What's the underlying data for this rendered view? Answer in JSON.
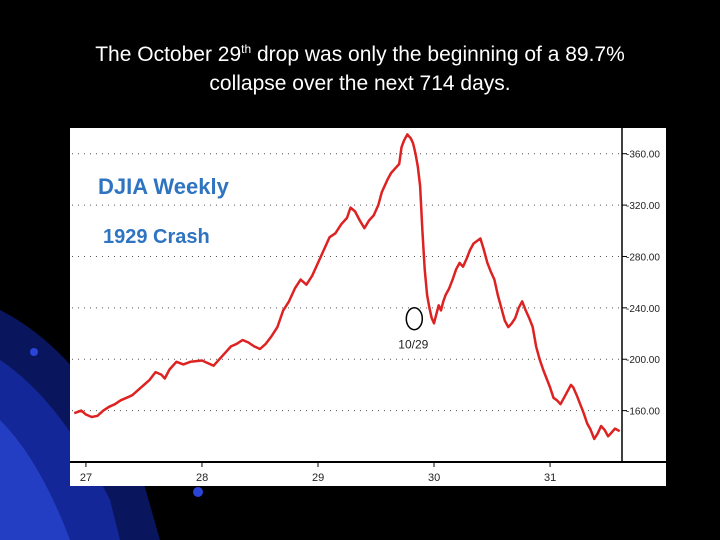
{
  "slide": {
    "title_part1": "The October 29",
    "title_sup": "th",
    "title_part2": " drop was only the beginning of a 89.7%",
    "title_line2": "collapse over the next 714 days."
  },
  "colors": {
    "background": "#000000",
    "plot_background": "#ffffff",
    "series_line": "#dd2222",
    "inset_title": "#2e74c0",
    "axis_panel": "#ffffff"
  },
  "chart_data": {
    "type": "line",
    "title": "DJIA Weekly",
    "subtitle": "1929 Crash",
    "ylim": [
      120,
      380
    ],
    "y_ticks": [
      360,
      320,
      280,
      240,
      200,
      160
    ],
    "y_tick_labels": [
      "360.00",
      "320.00",
      "280.00",
      "240.00",
      "200.00",
      "160.00"
    ],
    "x_ticks": [
      27,
      28,
      29,
      30,
      31
    ],
    "x_tick_labels": [
      "27",
      "28",
      "29",
      "30",
      "31"
    ],
    "xlim": [
      26.88,
      31.62
    ],
    "grid": "dotted-horizontal",
    "y_axis_position": "right",
    "annotation": {
      "label": "10/29",
      "x": 29.83,
      "y": 230
    },
    "series": [
      {
        "points": [
          [
            26.9,
            158
          ],
          [
            26.96,
            160
          ],
          [
            27.0,
            157
          ],
          [
            27.05,
            155
          ],
          [
            27.1,
            156
          ],
          [
            27.15,
            160
          ],
          [
            27.2,
            163
          ],
          [
            27.25,
            165
          ],
          [
            27.3,
            168
          ],
          [
            27.35,
            170
          ],
          [
            27.4,
            172
          ],
          [
            27.45,
            176
          ],
          [
            27.5,
            180
          ],
          [
            27.55,
            184
          ],
          [
            27.6,
            190
          ],
          [
            27.65,
            188
          ],
          [
            27.68,
            185
          ],
          [
            27.72,
            192
          ],
          [
            27.78,
            198
          ],
          [
            27.84,
            196
          ],
          [
            27.9,
            198
          ],
          [
            28.0,
            199
          ],
          [
            28.05,
            197
          ],
          [
            28.1,
            195
          ],
          [
            28.15,
            200
          ],
          [
            28.2,
            205
          ],
          [
            28.25,
            210
          ],
          [
            28.3,
            212
          ],
          [
            28.35,
            215
          ],
          [
            28.4,
            213
          ],
          [
            28.45,
            210
          ],
          [
            28.5,
            208
          ],
          [
            28.55,
            212
          ],
          [
            28.6,
            218
          ],
          [
            28.65,
            225
          ],
          [
            28.7,
            238
          ],
          [
            28.75,
            245
          ],
          [
            28.8,
            255
          ],
          [
            28.85,
            262
          ],
          [
            28.9,
            258
          ],
          [
            28.95,
            265
          ],
          [
            29.0,
            275
          ],
          [
            29.05,
            285
          ],
          [
            29.1,
            295
          ],
          [
            29.15,
            298
          ],
          [
            29.2,
            305
          ],
          [
            29.25,
            310
          ],
          [
            29.28,
            318
          ],
          [
            29.32,
            315
          ],
          [
            29.36,
            308
          ],
          [
            29.4,
            302
          ],
          [
            29.44,
            308
          ],
          [
            29.48,
            312
          ],
          [
            29.52,
            320
          ],
          [
            29.55,
            330
          ],
          [
            29.6,
            340
          ],
          [
            29.63,
            345
          ],
          [
            29.66,
            348
          ],
          [
            29.7,
            352
          ],
          [
            29.72,
            365
          ],
          [
            29.74,
            370
          ],
          [
            29.77,
            375
          ],
          [
            29.8,
            372
          ],
          [
            29.82,
            368
          ],
          [
            29.84,
            360
          ],
          [
            29.86,
            350
          ],
          [
            29.88,
            335
          ],
          [
            29.9,
            300
          ],
          [
            29.92,
            270
          ],
          [
            29.94,
            250
          ],
          [
            29.96,
            240
          ],
          [
            29.98,
            232
          ],
          [
            30.0,
            228
          ],
          [
            30.02,
            235
          ],
          [
            30.04,
            242
          ],
          [
            30.06,
            238
          ],
          [
            30.08,
            245
          ],
          [
            30.1,
            250
          ],
          [
            30.13,
            255
          ],
          [
            30.16,
            262
          ],
          [
            30.19,
            270
          ],
          [
            30.22,
            275
          ],
          [
            30.25,
            272
          ],
          [
            30.28,
            278
          ],
          [
            30.31,
            285
          ],
          [
            30.34,
            290
          ],
          [
            30.37,
            292
          ],
          [
            30.4,
            294
          ],
          [
            30.43,
            285
          ],
          [
            30.46,
            275
          ],
          [
            30.49,
            268
          ],
          [
            30.52,
            262
          ],
          [
            30.55,
            250
          ],
          [
            30.58,
            240
          ],
          [
            30.61,
            230
          ],
          [
            30.64,
            225
          ],
          [
            30.67,
            228
          ],
          [
            30.7,
            232
          ],
          [
            30.73,
            240
          ],
          [
            30.76,
            245
          ],
          [
            30.79,
            238
          ],
          [
            30.82,
            232
          ],
          [
            30.85,
            225
          ],
          [
            30.88,
            210
          ],
          [
            30.91,
            200
          ],
          [
            30.94,
            192
          ],
          [
            30.97,
            185
          ],
          [
            31.0,
            178
          ],
          [
            31.03,
            170
          ],
          [
            31.06,
            168
          ],
          [
            31.09,
            165
          ],
          [
            31.12,
            170
          ],
          [
            31.15,
            175
          ],
          [
            31.18,
            180
          ],
          [
            31.2,
            178
          ],
          [
            31.23,
            172
          ],
          [
            31.26,
            165
          ],
          [
            31.29,
            158
          ],
          [
            31.32,
            150
          ],
          [
            31.35,
            145
          ],
          [
            31.38,
            138
          ],
          [
            31.41,
            142
          ],
          [
            31.44,
            148
          ],
          [
            31.47,
            145
          ],
          [
            31.5,
            140
          ],
          [
            31.53,
            143
          ],
          [
            31.56,
            146
          ],
          [
            31.6,
            144
          ]
        ]
      }
    ]
  }
}
